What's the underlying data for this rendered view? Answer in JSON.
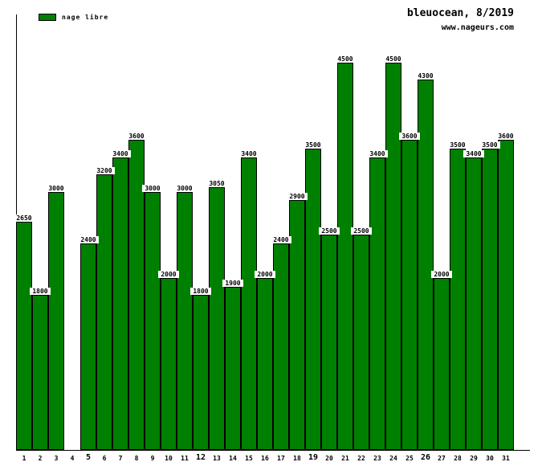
{
  "header": {
    "title": "bleuocean, 8/2019",
    "website": "www.nageurs.com"
  },
  "legend": {
    "label": "nage libre",
    "swatch_color": "#008000"
  },
  "chart_data": {
    "type": "bar",
    "title": "bleuocean, 8/2019",
    "subtitle": "www.nageurs.com",
    "series_name": "nage libre",
    "categories": [
      1,
      2,
      3,
      4,
      5,
      6,
      7,
      8,
      9,
      10,
      11,
      12,
      13,
      14,
      15,
      16,
      17,
      18,
      19,
      20,
      21,
      22,
      23,
      24,
      25,
      26,
      27,
      28,
      29,
      30,
      31
    ],
    "values": [
      2650,
      1800,
      3000,
      null,
      2400,
      3200,
      3400,
      3600,
      3000,
      2000,
      3000,
      1800,
      3050,
      1900,
      3400,
      2000,
      2400,
      2900,
      3500,
      2500,
      4500,
      2500,
      3400,
      4500,
      3600,
      4300,
      2000,
      3500,
      3400,
      3500,
      3600
    ],
    "xlabel": "",
    "ylabel": "",
    "ylim": [
      0,
      5060
    ],
    "grid": false,
    "legend_position": "top-left",
    "value_labels": true,
    "bold_ticks": [
      5,
      12,
      19,
      26
    ],
    "missing_days": [
      4
    ],
    "bar_color": "#008000",
    "bar_border_color": "#000000"
  }
}
